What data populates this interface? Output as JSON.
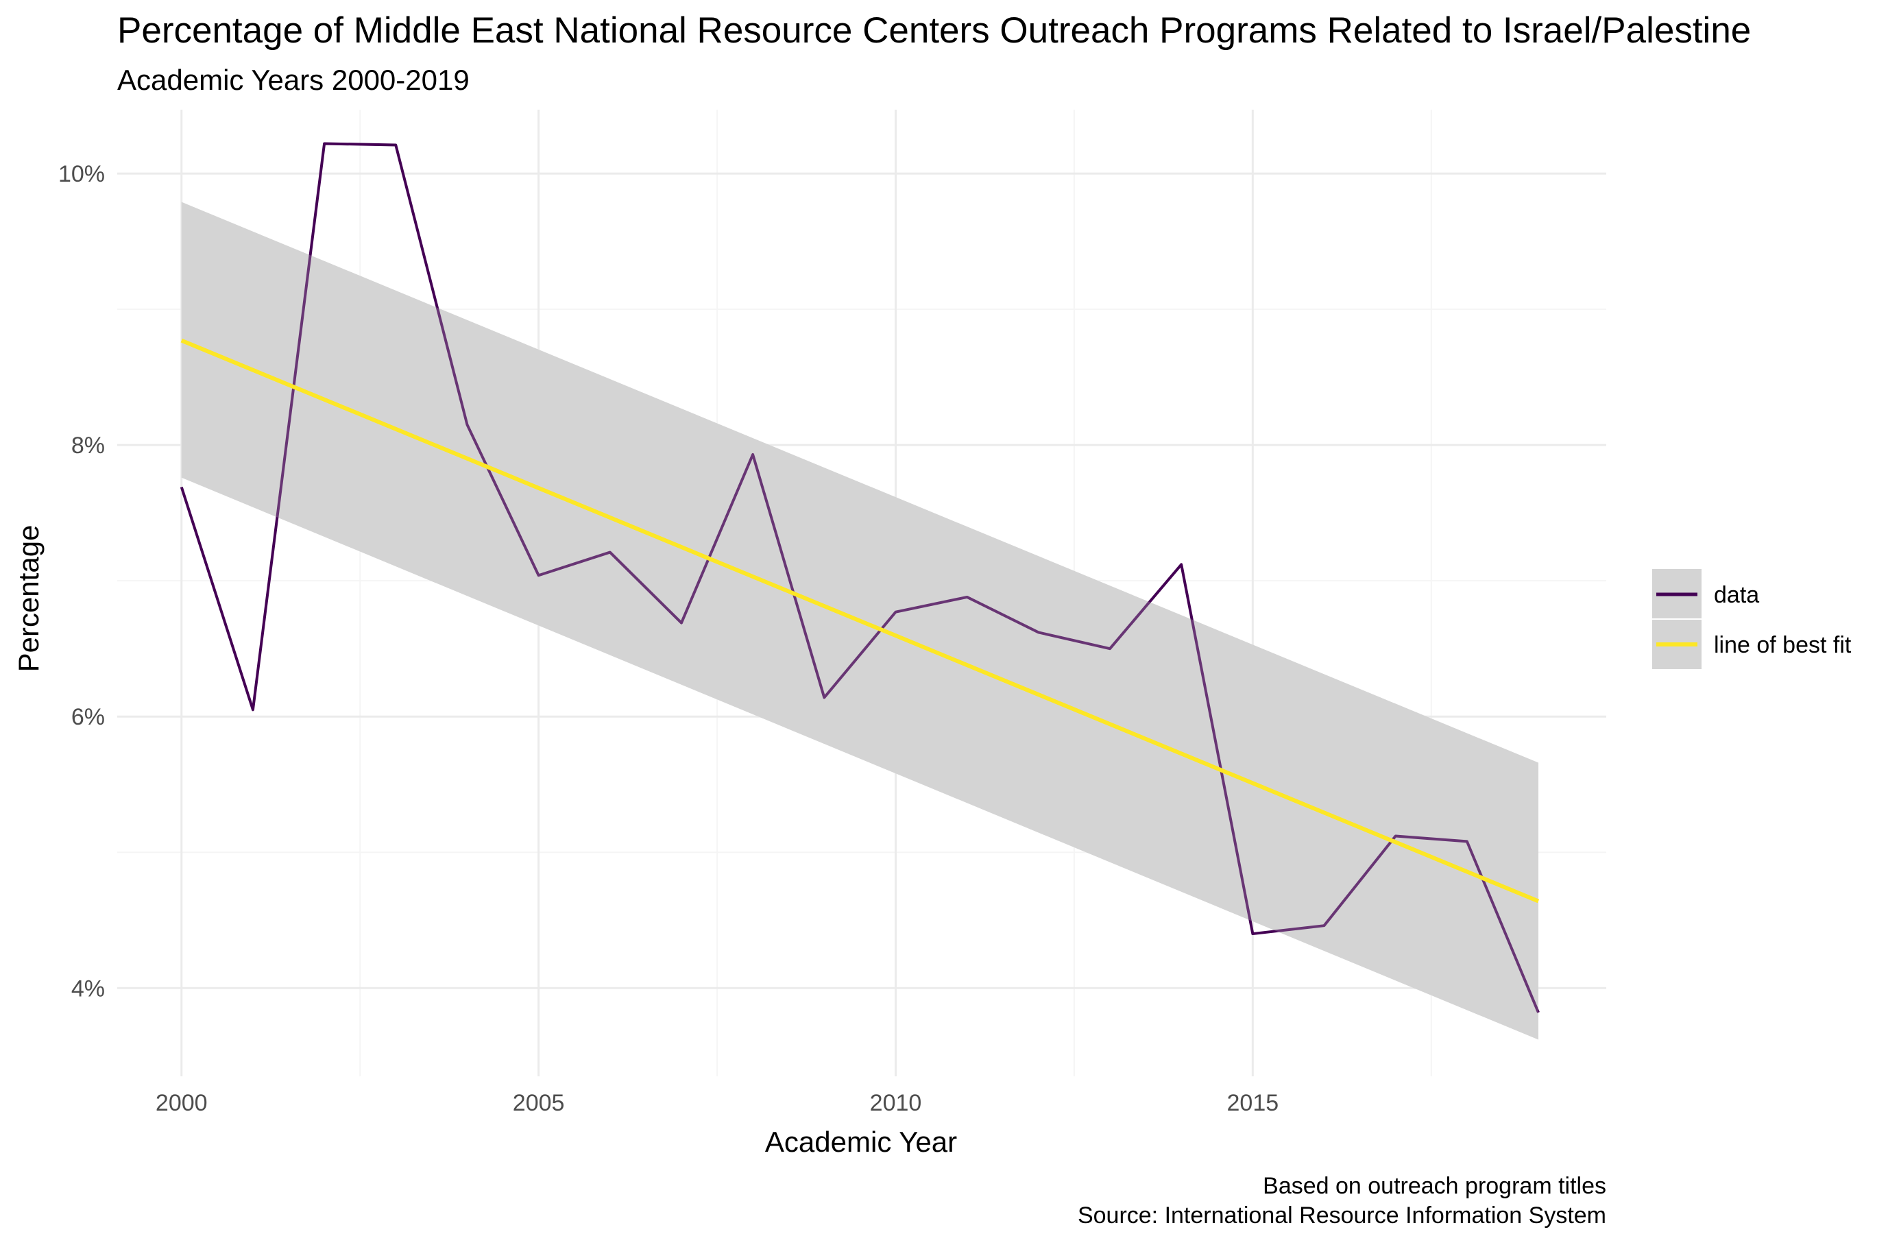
{
  "chart_data": {
    "type": "line",
    "title": "Percentage of Middle East National Resource Centers Outreach Programs Related to Israel/Palestine",
    "subtitle": "Academic Years 2000-2019",
    "xlabel": "Academic Year",
    "ylabel": "Percentage",
    "caption": [
      "Based on outreach program titles",
      "Source: International Resource Information System"
    ],
    "x_ticks": [
      2000,
      2005,
      2010,
      2015
    ],
    "x_tick_labels": [
      "2000",
      "2005",
      "2010",
      "2015"
    ],
    "y_ticks": [
      0.04,
      0.06,
      0.08,
      0.1
    ],
    "y_tick_labels": [
      "4%",
      "6%",
      "8%",
      "10%"
    ],
    "xlim": [
      1999.1,
      2019.95
    ],
    "ylim": [
      0.0335,
      0.1047
    ],
    "grid": true,
    "legend_position": "right",
    "legend": [
      "data",
      "line of best fit"
    ],
    "colors": {
      "data": "#440154",
      "fit": "#fde725",
      "band": "#d4d4d4",
      "grid_major": "#ebebeb",
      "grid_minor": "#f5f5f5"
    },
    "series": [
      {
        "name": "data",
        "x": [
          2000,
          2001,
          2002,
          2003,
          2004,
          2005,
          2006,
          2007,
          2008,
          2009,
          2010,
          2011,
          2012,
          2013,
          2014,
          2015,
          2016,
          2017,
          2018,
          2019
        ],
        "y": [
          0.0769,
          0.0605,
          0.1022,
          0.1021,
          0.0815,
          0.0704,
          0.0721,
          0.0669,
          0.0793,
          0.0614,
          0.0677,
          0.0688,
          0.0662,
          0.065,
          0.0712,
          0.044,
          0.0446,
          0.0512,
          0.0508,
          0.0382
        ]
      },
      {
        "name": "line of best fit",
        "x": [
          2000,
          2019
        ],
        "y": [
          0.0877,
          0.0464
        ],
        "ci_lower": [
          0.0776,
          0.0362
        ],
        "ci_upper": [
          0.0979,
          0.0566
        ]
      }
    ]
  }
}
